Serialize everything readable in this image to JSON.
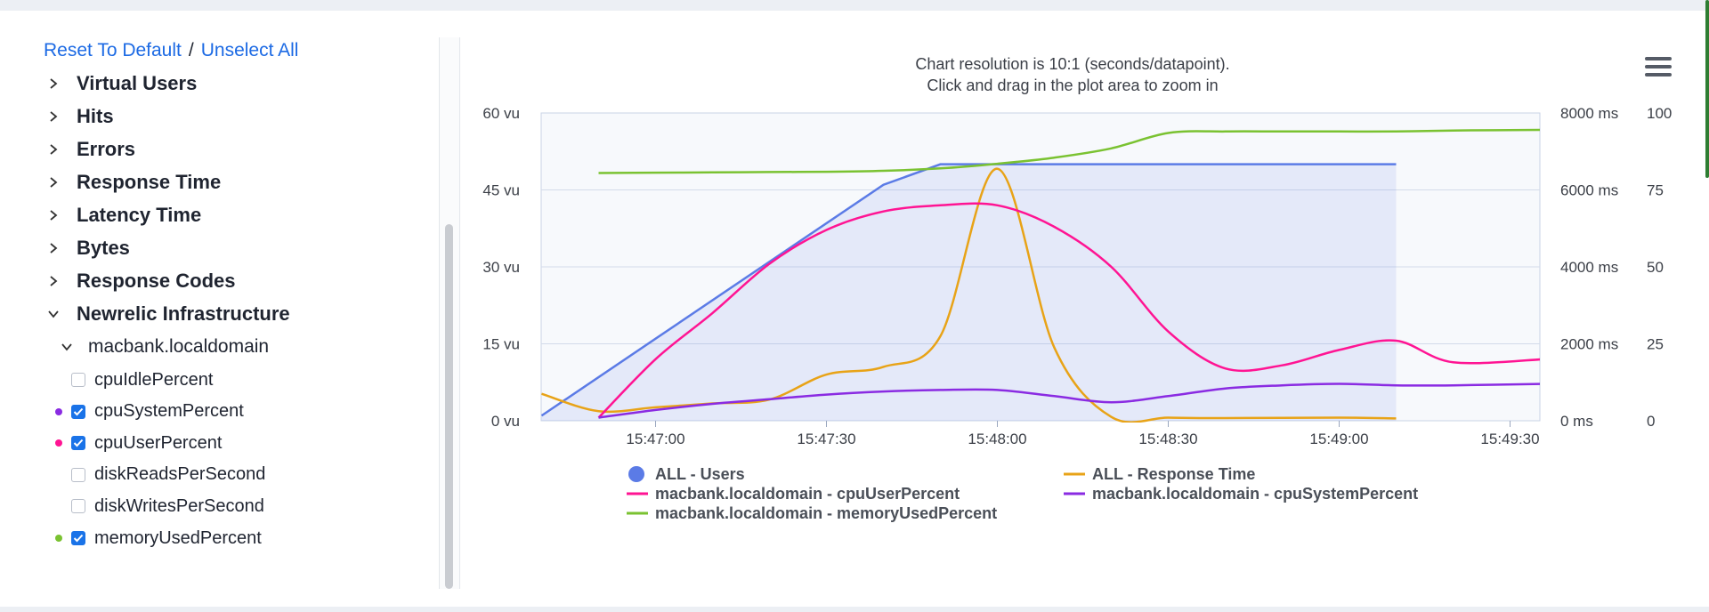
{
  "sidebar": {
    "reset_label": "Reset To Default",
    "separator": "/",
    "unselect_label": "Unselect All",
    "groups": [
      {
        "label": "Virtual Users"
      },
      {
        "label": "Hits"
      },
      {
        "label": "Errors"
      },
      {
        "label": "Response Time"
      },
      {
        "label": "Latency Time"
      },
      {
        "label": "Bytes"
      },
      {
        "label": "Response Codes"
      },
      {
        "label": "Newrelic Infrastructure"
      }
    ],
    "host": "macbank.localdomain",
    "metrics": [
      {
        "label": "cpuIdlePercent",
        "checked": false,
        "dot_color": ""
      },
      {
        "label": "cpuSystemPercent",
        "checked": true,
        "dot_color": "#8a2be2"
      },
      {
        "label": "cpuUserPercent",
        "checked": true,
        "dot_color": "#ff1493"
      },
      {
        "label": "diskReadsPerSecond",
        "checked": false,
        "dot_color": ""
      },
      {
        "label": "diskWritesPerSecond",
        "checked": false,
        "dot_color": ""
      },
      {
        "label": "memoryUsedPercent",
        "checked": true,
        "dot_color": "#7ac231"
      }
    ]
  },
  "chart": {
    "note_line1": "Chart resolution is 10:1 (seconds/datapoint).",
    "note_line2": "Click and drag in the plot area to zoom in"
  },
  "chart_data": {
    "type": "line",
    "x_ticks": [
      "15:47:00",
      "15:47:30",
      "15:48:00",
      "15:48:30",
      "15:49:00",
      "15:49:30"
    ],
    "y_left": {
      "ticks": [
        "0 vu",
        "15 vu",
        "30 vu",
        "45 vu",
        "60 vu"
      ],
      "range": [
        0,
        60
      ],
      "unit": "vu"
    },
    "y_mid": {
      "ticks": [
        "0 ms",
        "2000 ms",
        "4000 ms",
        "6000 ms",
        "8000 ms"
      ],
      "range": [
        0,
        8000
      ],
      "unit": "ms"
    },
    "y_right": {
      "ticks": [
        "0",
        "25",
        "50",
        "75",
        "100"
      ],
      "range": [
        0,
        100
      ]
    },
    "grid": true,
    "legend_position": "bottom",
    "series": [
      {
        "name": "ALL - Users",
        "axis": "vu",
        "color": "#5b7be6",
        "area": true,
        "marker": "circle",
        "x": [
          "15:46:40",
          "15:47:40",
          "15:47:50",
          "15:49:10"
        ],
        "y": [
          1,
          46,
          50,
          50
        ]
      },
      {
        "name": "ALL - Response Time",
        "axis": "ms",
        "color": "#e8a317",
        "x": [
          "15:46:40",
          "15:46:50",
          "15:47:00",
          "15:47:10",
          "15:47:20",
          "15:47:30",
          "15:47:40",
          "15:47:50",
          "15:48:00",
          "15:48:10",
          "15:48:20",
          "15:48:30",
          "15:48:40",
          "15:49:00",
          "15:49:10"
        ],
        "y": [
          700,
          250,
          350,
          450,
          550,
          1200,
          1400,
          2200,
          6550,
          1900,
          100,
          80,
          70,
          80,
          60
        ]
      },
      {
        "name": "macbank.localdomain - cpuUserPercent",
        "axis": "pct",
        "color": "#ff1493",
        "x": [
          "15:46:50",
          "15:47:00",
          "15:47:10",
          "15:47:20",
          "15:47:30",
          "15:47:40",
          "15:47:50",
          "15:48:00",
          "15:48:10",
          "15:48:20",
          "15:48:30",
          "15:48:40",
          "15:48:50",
          "15:49:00",
          "15:49:10",
          "15:49:20",
          "15:49:36"
        ],
        "y": [
          1,
          20,
          35,
          51,
          62,
          68,
          70,
          70,
          63,
          50,
          29,
          17,
          18,
          23,
          26,
          19,
          20
        ]
      },
      {
        "name": "macbank.localdomain - cpuSystemPercent",
        "axis": "pct",
        "color": "#8a2be2",
        "x": [
          "15:46:50",
          "15:47:00",
          "15:47:10",
          "15:47:20",
          "15:47:30",
          "15:47:40",
          "15:47:50",
          "15:48:00",
          "15:48:10",
          "15:48:20",
          "15:48:30",
          "15:48:40",
          "15:48:50",
          "15:49:00",
          "15:49:10",
          "15:49:20",
          "15:49:36"
        ],
        "y": [
          1,
          3.5,
          5.5,
          7,
          8.5,
          9.5,
          10,
          10,
          8,
          6,
          8,
          10.5,
          11.5,
          12,
          11.5,
          11.5,
          12
        ]
      },
      {
        "name": "macbank.localdomain - memoryUsedPercent",
        "axis": "pct",
        "color": "#7ac231",
        "x": [
          "15:46:50",
          "15:47:00",
          "15:47:10",
          "15:47:20",
          "15:47:30",
          "15:47:40",
          "15:47:50",
          "15:48:00",
          "15:48:10",
          "15:48:20",
          "15:48:30",
          "15:48:40",
          "15:48:50",
          "15:49:00",
          "15:49:10",
          "15:49:20",
          "15:49:36"
        ],
        "y": [
          80.5,
          80.6,
          80.7,
          80.8,
          80.9,
          81.2,
          82,
          83.5,
          85.5,
          88.5,
          93.5,
          94,
          94,
          94,
          94,
          94.3,
          94.5
        ]
      }
    ]
  }
}
